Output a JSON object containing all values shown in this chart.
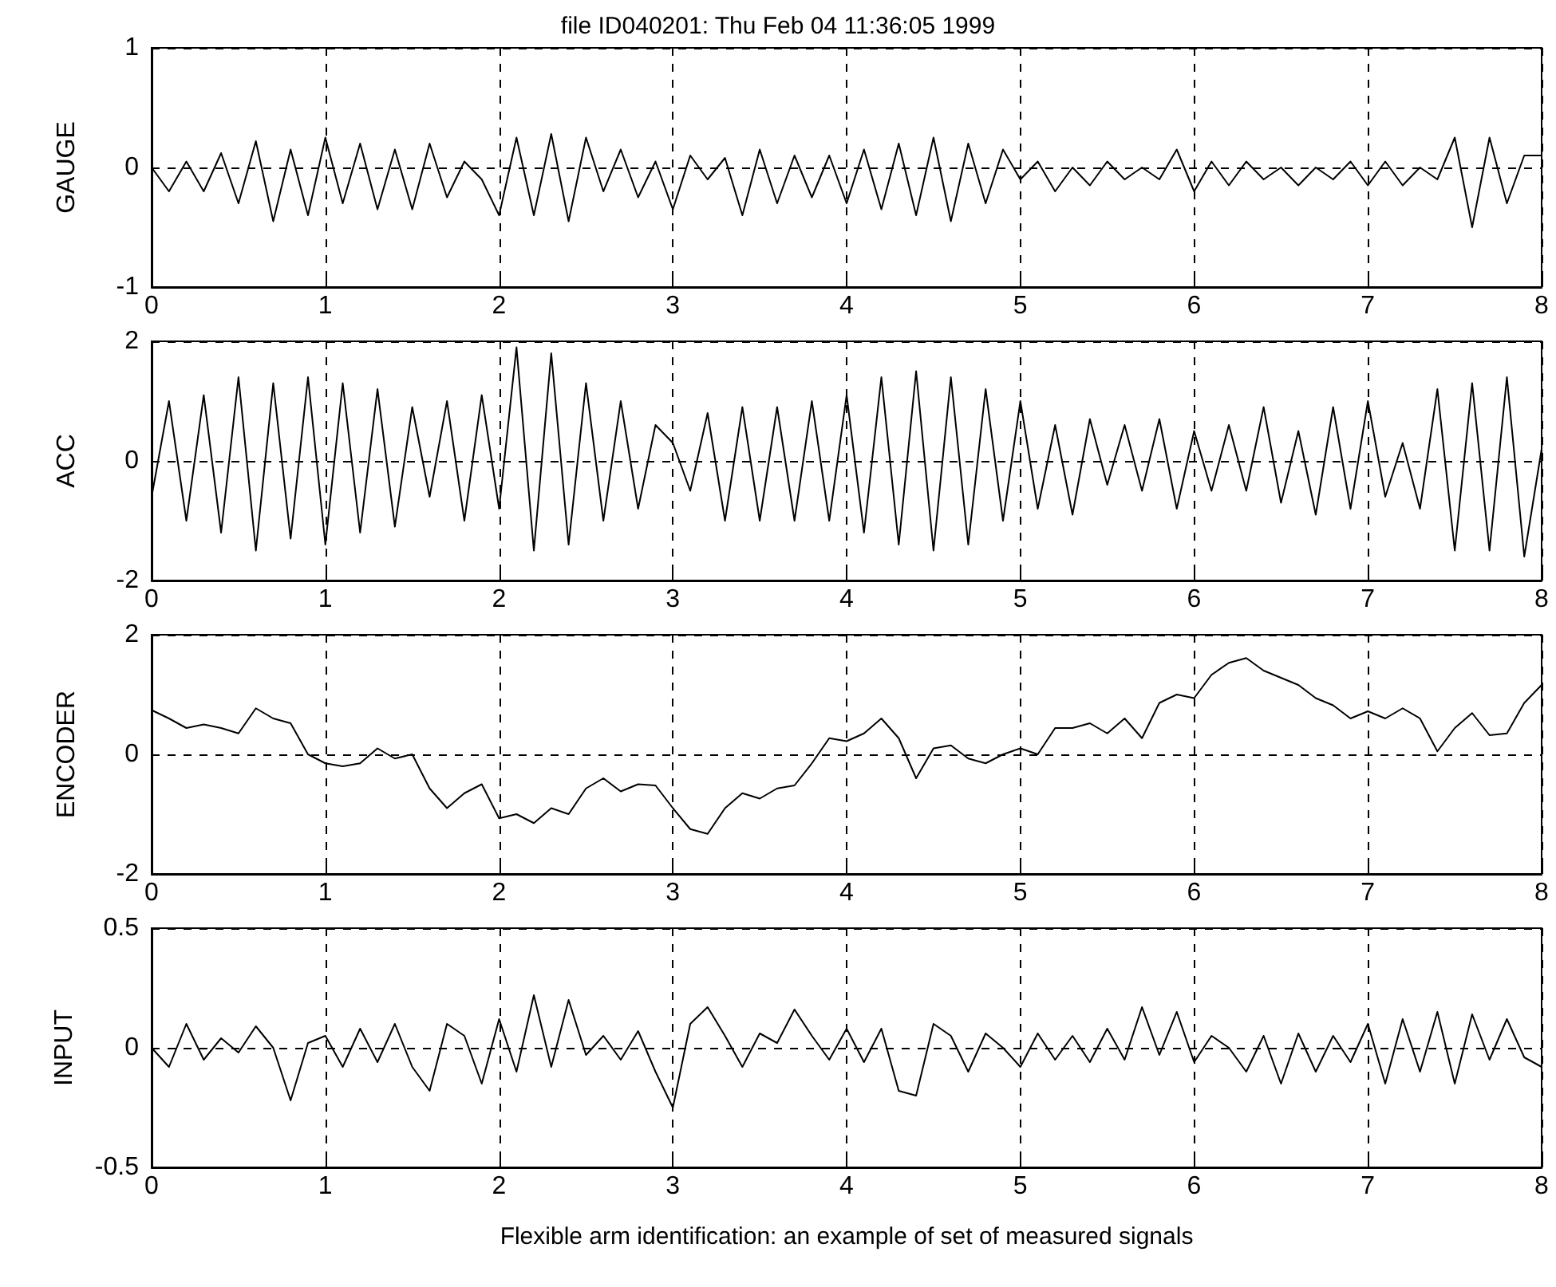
{
  "chart_data": [
    {
      "type": "line",
      "title": "file ID040201: Thu Feb 04 11:36:05 1999",
      "ylabel": "GAUGE",
      "xlim": [
        0,
        8
      ],
      "xticks": [
        0,
        1,
        2,
        3,
        4,
        5,
        6,
        7,
        8
      ],
      "ylim": [
        -1,
        1
      ],
      "yticks": [
        -1,
        0,
        1
      ],
      "grid": true,
      "x": [
        0,
        0.1,
        0.2,
        0.3,
        0.4,
        0.5,
        0.6,
        0.7,
        0.8,
        0.9,
        1,
        1.1,
        1.2,
        1.3,
        1.4,
        1.5,
        1.6,
        1.7,
        1.8,
        1.9,
        2,
        2.1,
        2.2,
        2.3,
        2.4,
        2.5,
        2.6,
        2.7,
        2.8,
        2.9,
        3,
        3.1,
        3.2,
        3.3,
        3.4,
        3.5,
        3.6,
        3.7,
        3.8,
        3.9,
        4,
        4.1,
        4.2,
        4.3,
        4.4,
        4.5,
        4.6,
        4.7,
        4.8,
        4.9,
        5,
        5.1,
        5.2,
        5.3,
        5.4,
        5.5,
        5.6,
        5.7,
        5.8,
        5.9,
        6,
        6.1,
        6.2,
        6.3,
        6.4,
        6.5,
        6.6,
        6.7,
        6.8,
        6.9,
        7,
        7.1,
        7.2,
        7.3,
        7.4,
        7.5,
        7.6,
        7.7,
        7.8,
        7.9,
        8
      ],
      "series": [
        {
          "color": "#000000",
          "values": [
            0,
            -0.2,
            0.05,
            -0.2,
            0.12,
            -0.3,
            0.22,
            -0.45,
            0.15,
            -0.4,
            0.25,
            -0.3,
            0.2,
            -0.35,
            0.15,
            -0.35,
            0.2,
            -0.25,
            0.05,
            -0.1,
            -0.4,
            0.25,
            -0.4,
            0.28,
            -0.45,
            0.25,
            -0.2,
            0.15,
            -0.25,
            0.05,
            -0.35,
            0.1,
            -0.1,
            0.08,
            -0.4,
            0.15,
            -0.3,
            0.1,
            -0.25,
            0.1,
            -0.3,
            0.15,
            -0.35,
            0.2,
            -0.4,
            0.25,
            -0.45,
            0.2,
            -0.3,
            0.15,
            -0.1,
            0.05,
            -0.2,
            0,
            -0.15,
            0.05,
            -0.1,
            0,
            -0.1,
            0.15,
            -0.2,
            0.05,
            -0.15,
            0.05,
            -0.1,
            0,
            -0.15,
            0,
            -0.1,
            0.05,
            -0.15,
            0.05,
            -0.15,
            0,
            -0.1,
            0.25,
            -0.5,
            0.25,
            -0.3,
            0.1,
            0.1
          ]
        }
      ]
    },
    {
      "type": "line",
      "ylabel": "ACC",
      "xlim": [
        0,
        8
      ],
      "xticks": [
        0,
        1,
        2,
        3,
        4,
        5,
        6,
        7,
        8
      ],
      "ylim": [
        -2,
        2
      ],
      "yticks": [
        -2,
        0,
        2
      ],
      "grid": true,
      "x": [
        0,
        0.1,
        0.2,
        0.3,
        0.4,
        0.5,
        0.6,
        0.7,
        0.8,
        0.9,
        1,
        1.1,
        1.2,
        1.3,
        1.4,
        1.5,
        1.6,
        1.7,
        1.8,
        1.9,
        2,
        2.1,
        2.2,
        2.3,
        2.4,
        2.5,
        2.6,
        2.7,
        2.8,
        2.9,
        3,
        3.1,
        3.2,
        3.3,
        3.4,
        3.5,
        3.6,
        3.7,
        3.8,
        3.9,
        4,
        4.1,
        4.2,
        4.3,
        4.4,
        4.5,
        4.6,
        4.7,
        4.8,
        4.9,
        5,
        5.1,
        5.2,
        5.3,
        5.4,
        5.5,
        5.6,
        5.7,
        5.8,
        5.9,
        6,
        6.1,
        6.2,
        6.3,
        6.4,
        6.5,
        6.6,
        6.7,
        6.8,
        6.9,
        7,
        7.1,
        7.2,
        7.3,
        7.4,
        7.5,
        7.6,
        7.7,
        7.8,
        7.9,
        8
      ],
      "series": [
        {
          "color": "#000000",
          "values": [
            -0.6,
            1,
            -1,
            1.1,
            -1.2,
            1.4,
            -1.5,
            1.3,
            -1.3,
            1.4,
            -1.4,
            1.3,
            -1.2,
            1.2,
            -1.1,
            0.9,
            -0.6,
            1,
            -1,
            1.1,
            -0.8,
            1.9,
            -1.5,
            1.8,
            -1.4,
            1.3,
            -1,
            1,
            -0.8,
            0.6,
            0.3,
            -0.5,
            0.8,
            -1,
            0.9,
            -1,
            0.9,
            -1,
            1,
            -1,
            1.1,
            -1.2,
            1.4,
            -1.4,
            1.5,
            -1.5,
            1.4,
            -1.4,
            1.2,
            -1,
            1,
            -0.8,
            0.6,
            -0.9,
            0.7,
            -0.4,
            0.6,
            -0.5,
            0.7,
            -0.8,
            0.5,
            -0.5,
            0.6,
            -0.5,
            0.9,
            -0.7,
            0.5,
            -0.9,
            0.9,
            -0.8,
            1,
            -0.6,
            0.3,
            -0.8,
            1.2,
            -1.5,
            1.3,
            -1.5,
            1.4,
            -1.6,
            0.2
          ]
        }
      ]
    },
    {
      "type": "line",
      "ylabel": "ENCODER",
      "xlim": [
        0,
        8
      ],
      "xticks": [
        0,
        1,
        2,
        3,
        4,
        5,
        6,
        7,
        8
      ],
      "ylim": [
        -2,
        2
      ],
      "yticks": [
        -2,
        0,
        2
      ],
      "grid": true,
      "x": [
        0,
        0.1,
        0.2,
        0.3,
        0.4,
        0.5,
        0.6,
        0.7,
        0.8,
        0.9,
        1,
        1.1,
        1.2,
        1.3,
        1.4,
        1.5,
        1.6,
        1.7,
        1.8,
        1.9,
        2,
        2.1,
        2.2,
        2.3,
        2.4,
        2.5,
        2.6,
        2.7,
        2.8,
        2.9,
        3,
        3.1,
        3.2,
        3.3,
        3.4,
        3.5,
        3.6,
        3.7,
        3.8,
        3.9,
        4,
        4.1,
        4.2,
        4.3,
        4.4,
        4.5,
        4.6,
        4.7,
        4.8,
        4.9,
        5,
        5.1,
        5.2,
        5.3,
        5.4,
        5.5,
        5.6,
        5.7,
        5.8,
        5.9,
        6,
        6.1,
        6.2,
        6.3,
        6.4,
        6.5,
        6.6,
        6.7,
        6.8,
        6.9,
        7,
        7.1,
        7.2,
        7.3,
        7.4,
        7.5,
        7.6,
        7.7,
        7.8,
        7.9,
        8
      ],
      "series": [
        {
          "color": "#000000",
          "values": [
            0.74,
            0.6,
            0.44,
            0.5,
            0.44,
            0.35,
            0.77,
            0.6,
            0.52,
            0,
            -0.15,
            -0.2,
            -0.15,
            0.1,
            -0.07,
            0,
            -0.57,
            -0.9,
            -0.65,
            -0.5,
            -1.07,
            -1,
            -1.15,
            -0.9,
            -1,
            -0.57,
            -0.4,
            -0.62,
            -0.5,
            -0.52,
            -0.9,
            -1.25,
            -1.33,
            -0.9,
            -0.65,
            -0.74,
            -0.57,
            -0.52,
            -0.15,
            0.27,
            0.22,
            0.35,
            0.6,
            0.27,
            -0.4,
            0.1,
            0.15,
            -0.07,
            -0.15,
            0,
            0.1,
            0,
            0.44,
            0.44,
            0.52,
            0.35,
            0.6,
            0.27,
            0.86,
            1,
            0.94,
            1.33,
            1.53,
            1.61,
            1.4,
            1.28,
            1.16,
            0.94,
            0.82,
            0.6,
            0.72,
            0.6,
            0.77,
            0.6,
            0.05,
            0.44,
            0.69,
            0.32,
            0.35,
            0.86,
            1.16
          ]
        }
      ]
    },
    {
      "type": "line",
      "ylabel": "INPUT",
      "xlabel": "Flexible arm identification: an example of set of measured signals",
      "xlim": [
        0,
        8
      ],
      "xticks": [
        0,
        1,
        2,
        3,
        4,
        5,
        6,
        7,
        8
      ],
      "ylim": [
        -0.5,
        0.5
      ],
      "yticks": [
        -0.5,
        0,
        0.5
      ],
      "grid": true,
      "x": [
        0,
        0.1,
        0.2,
        0.3,
        0.4,
        0.5,
        0.6,
        0.7,
        0.8,
        0.9,
        1,
        1.1,
        1.2,
        1.3,
        1.4,
        1.5,
        1.6,
        1.7,
        1.8,
        1.9,
        2,
        2.1,
        2.2,
        2.3,
        2.4,
        2.5,
        2.6,
        2.7,
        2.8,
        2.9,
        3,
        3.1,
        3.2,
        3.3,
        3.4,
        3.5,
        3.6,
        3.7,
        3.8,
        3.9,
        4,
        4.1,
        4.2,
        4.3,
        4.4,
        4.5,
        4.6,
        4.7,
        4.8,
        4.9,
        5,
        5.1,
        5.2,
        5.3,
        5.4,
        5.5,
        5.6,
        5.7,
        5.8,
        5.9,
        6,
        6.1,
        6.2,
        6.3,
        6.4,
        6.5,
        6.6,
        6.7,
        6.8,
        6.9,
        7,
        7.1,
        7.2,
        7.3,
        7.4,
        7.5,
        7.6,
        7.7,
        7.8,
        7.9,
        8
      ],
      "series": [
        {
          "color": "#000000",
          "values": [
            0,
            -0.08,
            0.1,
            -0.05,
            0.04,
            -0.02,
            0.09,
            0,
            -0.22,
            0.02,
            0.05,
            -0.08,
            0.08,
            -0.06,
            0.1,
            -0.08,
            -0.18,
            0.1,
            0.05,
            -0.15,
            0.12,
            -0.1,
            0.22,
            -0.08,
            0.2,
            -0.03,
            0.05,
            -0.05,
            0.07,
            -0.1,
            -0.25,
            0.1,
            0.17,
            0.05,
            -0.08,
            0.06,
            0.02,
            0.16,
            0.05,
            -0.05,
            0.08,
            -0.06,
            0.08,
            -0.18,
            -0.2,
            0.1,
            0.05,
            -0.1,
            0.06,
            0,
            -0.08,
            0.06,
            -0.05,
            0.05,
            -0.06,
            0.08,
            -0.05,
            0.17,
            -0.03,
            0.15,
            -0.06,
            0.05,
            0,
            -0.1,
            0.05,
            -0.15,
            0.06,
            -0.1,
            0.05,
            -0.06,
            0.1,
            -0.15,
            0.12,
            -0.1,
            0.15,
            -0.15,
            0.14,
            -0.05,
            0.12,
            -0.04,
            -0.08
          ]
        }
      ]
    }
  ]
}
